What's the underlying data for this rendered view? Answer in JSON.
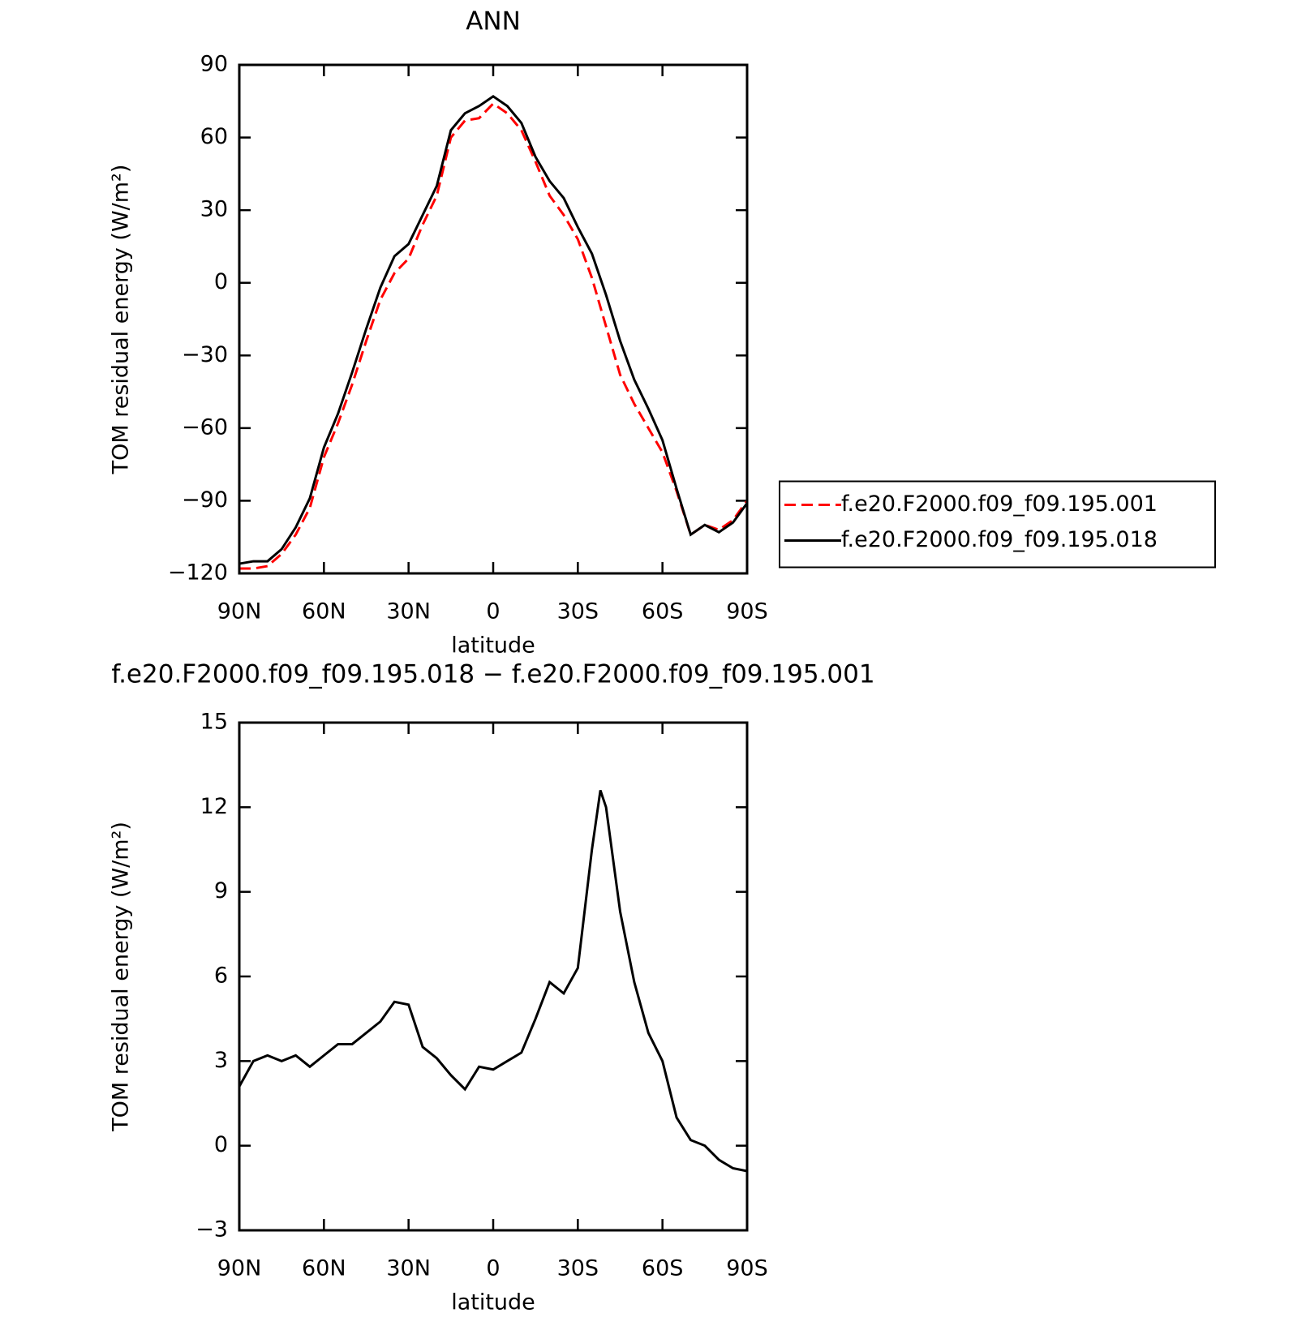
{
  "chart_data": [
    {
      "type": "line",
      "title": "ANN",
      "xlabel": "latitude",
      "ylabel": "TOM residual energy (W/m²)",
      "x": [
        90,
        85,
        80,
        75,
        70,
        65,
        60,
        55,
        50,
        45,
        40,
        35,
        30,
        25,
        20,
        15,
        10,
        5,
        0,
        -5,
        -10,
        -15,
        -20,
        -25,
        -30,
        -35,
        -40,
        -45,
        -50,
        -55,
        -60,
        -65,
        -70,
        -75,
        -80,
        -85,
        -90
      ],
      "series": [
        {
          "name": "f.e20.F2000.f09_f09.195.001",
          "color": "#ff0000",
          "linestyle": "dashed",
          "values": [
            -118,
            -118,
            -117,
            -112,
            -104,
            -93,
            -72,
            -58,
            -42,
            -24,
            -7,
            4,
            10,
            24,
            36,
            60,
            67,
            68,
            74,
            70,
            63,
            50,
            36,
            28,
            18,
            2,
            -18,
            -38,
            -50,
            -60,
            -70,
            -86,
            -104,
            -100,
            -102,
            -98,
            -90
          ]
        },
        {
          "name": "f.e20.F2000.f09_f09.195.018",
          "color": "#000000",
          "linestyle": "solid",
          "values": [
            -116,
            -115,
            -115,
            -110,
            -101,
            -89,
            -68,
            -54,
            -37,
            -19,
            -2,
            11,
            16,
            28,
            40,
            63,
            70,
            73,
            77,
            73,
            66,
            52,
            42,
            35,
            23,
            12,
            -5,
            -24,
            -40,
            -52,
            -65,
            -85,
            -104,
            -100,
            -103,
            -99,
            -91
          ]
        }
      ],
      "xlim": [
        90,
        -90
      ],
      "xticks": [
        {
          "value": 90,
          "label": "90N"
        },
        {
          "value": 60,
          "label": "60N"
        },
        {
          "value": 30,
          "label": "30N"
        },
        0,
        {
          "value": -30,
          "label": "30S"
        },
        {
          "value": -60,
          "label": "60S"
        },
        {
          "value": -90,
          "label": "90S"
        }
      ],
      "ylim": [
        -120,
        90
      ],
      "yticks": [
        {
          "value": -120,
          "label": "−120"
        },
        {
          "value": -90,
          "label": "−90"
        },
        {
          "value": -60,
          "label": "−60"
        },
        {
          "value": -30,
          "label": "−30"
        },
        0,
        30,
        60,
        90
      ],
      "legend": "right"
    },
    {
      "type": "line",
      "title": "f.e20.F2000.f09_f09.195.018 − f.e20.F2000.f09_f09.195.001",
      "xlabel": "latitude",
      "ylabel": "TOM residual energy (W/m²)",
      "x": [
        90,
        85,
        80,
        75,
        70,
        65,
        60,
        55,
        50,
        45,
        40,
        35,
        30,
        25,
        20,
        15,
        10,
        5,
        0,
        -5,
        -10,
        -15,
        -20,
        -25,
        -30,
        -35,
        -38,
        -40,
        -45,
        -50,
        -55,
        -60,
        -65,
        -70,
        -75,
        -80,
        -85,
        -90
      ],
      "series": [
        {
          "color": "#000000",
          "linestyle": "solid",
          "values": [
            2.1,
            3.0,
            3.2,
            3.0,
            3.2,
            2.8,
            3.2,
            3.6,
            3.6,
            4.0,
            4.4,
            5.1,
            5.0,
            3.5,
            3.1,
            2.5,
            2.0,
            2.8,
            2.7,
            3.0,
            3.3,
            4.5,
            5.8,
            5.4,
            6.3,
            10.5,
            12.6,
            12.0,
            8.3,
            5.8,
            4.0,
            3.0,
            1.0,
            0.2,
            0.0,
            -0.5,
            -0.8,
            -0.9
          ]
        }
      ],
      "xlim": [
        90,
        -90
      ],
      "xticks": [
        {
          "value": 90,
          "label": "90N"
        },
        {
          "value": 60,
          "label": "60N"
        },
        {
          "value": 30,
          "label": "30N"
        },
        0,
        {
          "value": -30,
          "label": "30S"
        },
        {
          "value": -60,
          "label": "60S"
        },
        {
          "value": -90,
          "label": "90S"
        }
      ],
      "ylim": [
        -3,
        15
      ],
      "yticks": [
        {
          "value": -3,
          "label": "−3"
        },
        0,
        3,
        6,
        9,
        12,
        15
      ]
    }
  ]
}
